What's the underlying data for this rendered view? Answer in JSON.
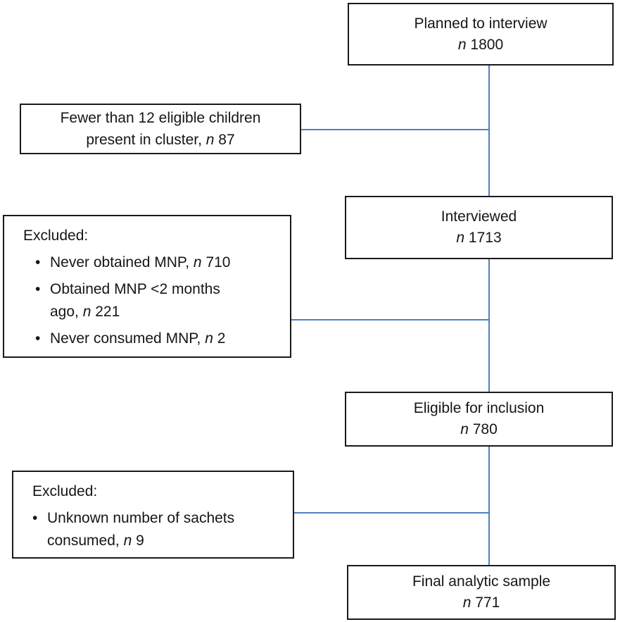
{
  "colors": {
    "connector": "#4f81bd",
    "box_border": "#1a1a1a",
    "text": "#161616",
    "background": "#ffffff"
  },
  "bullet_char": "•",
  "boxes": {
    "planned": {
      "title": "Planned to interview",
      "n": "n",
      "count": "1800"
    },
    "fewer_than_12": {
      "line1": "Fewer than 12 eligible children",
      "line2": "present in cluster,",
      "n": "n",
      "count": "87"
    },
    "interviewed": {
      "title": "Interviewed",
      "n": "n",
      "count": "1713"
    },
    "excluded_mnp": {
      "heading": "Excluded:",
      "bullets": [
        {
          "line1": "Never obtained MNP,",
          "line2": "",
          "n": "n",
          "count": "710"
        },
        {
          "line1": "Obtained MNP <2 months",
          "line2": "ago,",
          "n": "n",
          "count": "221"
        },
        {
          "line1": "Never consumed MNP,",
          "line2": "",
          "n": "n",
          "count": "2"
        }
      ]
    },
    "eligible": {
      "title": "Eligible for inclusion",
      "n": "n",
      "count": "780"
    },
    "excluded_sachets": {
      "heading": "Excluded:",
      "bullets": [
        {
          "line1": "Unknown number of sachets",
          "line2": "consumed,",
          "n": "n",
          "count": "9"
        }
      ]
    },
    "final": {
      "title": "Final analytic sample",
      "n": "n",
      "count": "771"
    }
  }
}
